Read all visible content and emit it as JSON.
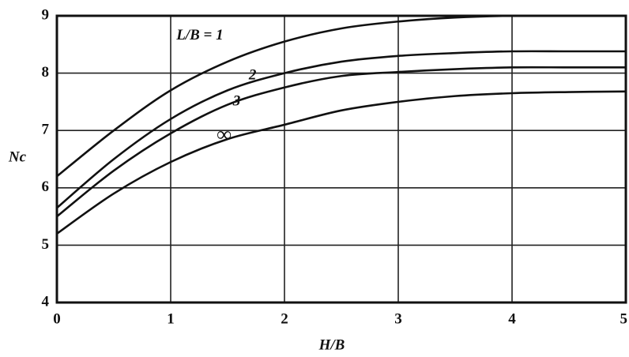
{
  "chart_data": {
    "type": "line",
    "x_label": "H/B",
    "y_label": "Nc",
    "x": [
      0,
      0.5,
      1,
      1.5,
      2,
      2.5,
      3,
      3.5,
      4,
      4.5,
      5
    ],
    "series": [
      {
        "name": "L/B = 1",
        "color": "#111111",
        "values": [
          6.2,
          7.0,
          7.7,
          8.2,
          8.55,
          8.78,
          8.9,
          8.97,
          9.0,
          9.0,
          9.0
        ]
      },
      {
        "name": "2",
        "color": "#111111",
        "values": [
          5.65,
          6.5,
          7.2,
          7.7,
          8.0,
          8.2,
          8.3,
          8.35,
          8.38,
          8.38,
          8.38
        ]
      },
      {
        "name": "3",
        "color": "#111111",
        "values": [
          5.5,
          6.3,
          6.95,
          7.45,
          7.75,
          7.95,
          8.02,
          8.07,
          8.1,
          8.1,
          8.1
        ]
      },
      {
        "name": "∞",
        "color": "#111111",
        "values": [
          5.2,
          5.9,
          6.45,
          6.85,
          7.1,
          7.35,
          7.5,
          7.6,
          7.65,
          7.67,
          7.68
        ]
      }
    ],
    "xlim": [
      0,
      5
    ],
    "xticks": [
      0,
      1,
      2,
      3,
      4,
      5
    ],
    "ylim": [
      4,
      9
    ],
    "yticks": [
      4,
      5,
      6,
      7,
      8,
      9
    ],
    "grid": true
  }
}
